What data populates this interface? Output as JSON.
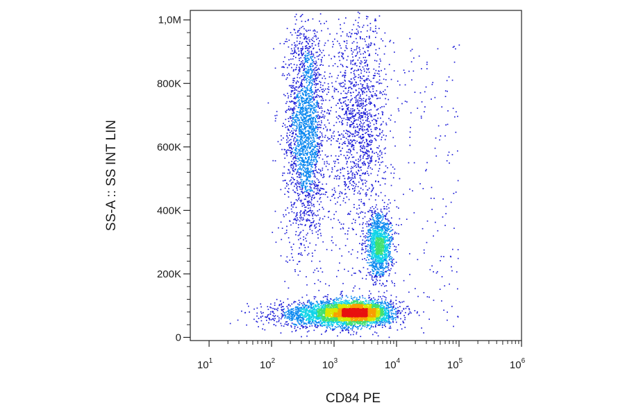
{
  "chart_data": {
    "type": "scatter",
    "subtype": "flow-cytometry density dot plot",
    "xlabel": "CD84 PE",
    "ylabel": "SS-A :: SS INT LIN",
    "x_scale": "log",
    "xlim": [
      5,
      1000000
    ],
    "ylim": [
      -10000,
      1030000
    ],
    "x_ticks": [
      {
        "base": "10",
        "exp": "1"
      },
      {
        "base": "10",
        "exp": "2"
      },
      {
        "base": "10",
        "exp": "3"
      },
      {
        "base": "10",
        "exp": "4"
      },
      {
        "base": "10",
        "exp": "5"
      },
      {
        "base": "10",
        "exp": "6"
      }
    ],
    "y_ticks": [
      {
        "value": 0,
        "label": "0"
      },
      {
        "value": 200000,
        "label": "200K"
      },
      {
        "value": 400000,
        "label": "400K"
      },
      {
        "value": 600000,
        "label": "600K"
      },
      {
        "value": 800000,
        "label": "800K"
      },
      {
        "value": 1000000,
        "label": "1,0M"
      }
    ],
    "populations": [
      {
        "center_x": 350,
        "center_y": 660000,
        "spread_log_x": 0.15,
        "spread_y": 170000,
        "density": "high"
      },
      {
        "center_x": 900,
        "center_y": 75000,
        "spread_log_x": 0.45,
        "spread_y": 20000,
        "density": "high"
      },
      {
        "center_x": 2500,
        "center_y": 80000,
        "spread_log_x": 0.25,
        "spread_y": 18000,
        "density": "very high"
      },
      {
        "center_x": 5200,
        "center_y": 290000,
        "spread_log_x": 0.1,
        "spread_y": 50000,
        "density": "medium"
      },
      {
        "center_x": 2500,
        "center_y": 680000,
        "spread_log_x": 0.22,
        "spread_y": 170000,
        "density": "medium"
      }
    ],
    "color_scale": [
      "#1f1fd8",
      "#0a88f0",
      "#10d4e8",
      "#40e070",
      "#d8e800",
      "#f8a000",
      "#e81010"
    ],
    "grid": false,
    "legend": "none"
  }
}
